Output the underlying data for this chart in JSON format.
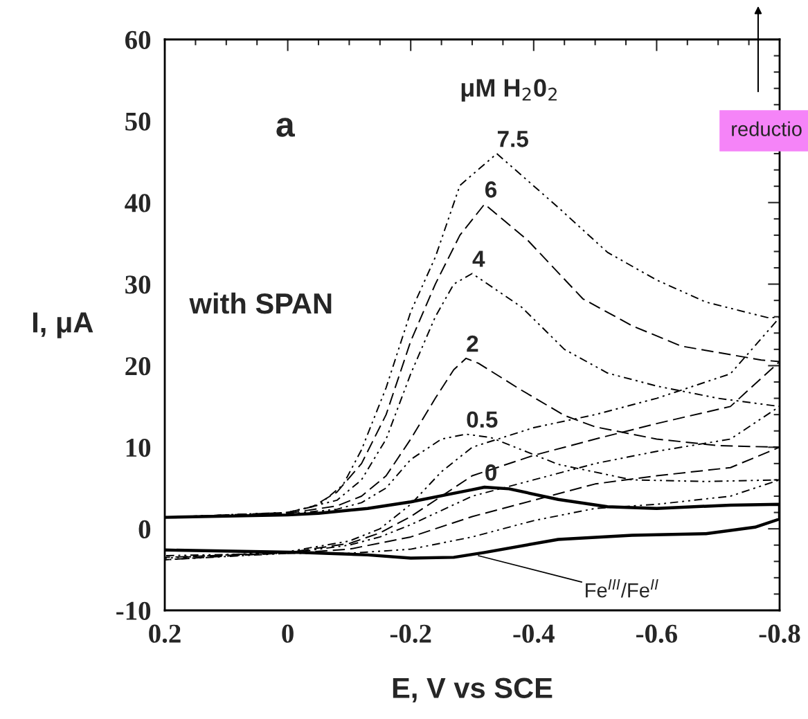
{
  "chart_data": {
    "type": "line",
    "xlabel": "E, V vs SCE",
    "ylabel": "I, μA",
    "xlim": [
      0.2,
      -0.8
    ],
    "xticks": [
      0.2,
      0,
      -0.2,
      -0.4,
      -0.6,
      -0.8
    ],
    "ylim": [
      -10,
      60
    ],
    "yticks": [
      -10,
      0,
      10,
      20,
      30,
      40,
      50,
      60
    ],
    "grid": false,
    "legend": false,
    "marker": "none",
    "series": [
      {
        "name": "0",
        "color": "#000000",
        "line_style": "solid",
        "x": [
          0.2,
          0,
          -0.05,
          -0.13,
          -0.2,
          -0.26,
          -0.3,
          -0.32,
          -0.36,
          -0.44,
          -0.52,
          -0.6,
          -0.72,
          -0.8,
          -0.8,
          -0.76,
          -0.68,
          -0.56,
          -0.44,
          -0.32,
          -0.27,
          -0.2,
          -0.13,
          -0.02,
          0.2
        ],
        "values": [
          1.4,
          1.7,
          1.9,
          2.5,
          3.3,
          4.2,
          4.8,
          5.1,
          4.9,
          3.6,
          2.7,
          2.5,
          2.9,
          3.0,
          1.2,
          0.2,
          -0.6,
          -0.8,
          -1.3,
          -2.9,
          -3.5,
          -3.6,
          -3.2,
          -2.9,
          -2.6
        ]
      },
      {
        "name": "0.5",
        "color": "#000000",
        "line_style": "dotted",
        "x": [
          0.2,
          0,
          -0.08,
          -0.12,
          -0.16,
          -0.2,
          -0.25,
          -0.29,
          -0.33,
          -0.37,
          -0.44,
          -0.56,
          -0.68,
          -0.8,
          -0.8,
          -0.72,
          -0.6,
          -0.5,
          -0.4,
          -0.3,
          -0.2,
          -0.1,
          0,
          0.2
        ],
        "values": [
          1.4,
          1.8,
          2.4,
          3.2,
          5.0,
          8.5,
          11,
          11.6,
          11.2,
          10,
          7.9,
          6.0,
          5.8,
          6.0,
          6.0,
          4.0,
          3.0,
          2.5,
          1.0,
          -1.0,
          -2.5,
          -3.0,
          -3.0,
          -3.3
        ]
      },
      {
        "name": "2",
        "color": "#000000",
        "line_style": "dashed",
        "x": [
          0.2,
          0,
          -0.08,
          -0.12,
          -0.16,
          -0.2,
          -0.24,
          -0.27,
          -0.29,
          -0.31,
          -0.38,
          -0.45,
          -0.5,
          -0.6,
          -0.7,
          -0.8,
          -0.8,
          -0.72,
          -0.6,
          -0.5,
          -0.4,
          -0.3,
          -0.2,
          -0.1,
          0,
          0.2
        ],
        "values": [
          1.4,
          1.9,
          2.8,
          4.0,
          6.5,
          11,
          16,
          19.5,
          20.9,
          20.3,
          17.0,
          13.9,
          12.5,
          11,
          10.2,
          10,
          10,
          7.5,
          6.5,
          5.5,
          3.5,
          1.5,
          -1.0,
          -2.5,
          -3.0,
          -3.5
        ]
      },
      {
        "name": "4",
        "color": "#000000",
        "line_style": "dotted",
        "x": [
          0.2,
          0,
          -0.08,
          -0.12,
          -0.16,
          -0.2,
          -0.24,
          -0.27,
          -0.3,
          -0.38,
          -0.45,
          -0.52,
          -0.6,
          -0.7,
          -0.8,
          -0.8,
          -0.72,
          -0.6,
          -0.5,
          -0.4,
          -0.3,
          -0.2,
          -0.15,
          -0.1,
          0,
          0.2
        ],
        "values": [
          1.4,
          2.0,
          3.5,
          6.0,
          11,
          19,
          26,
          30,
          31.3,
          27.2,
          22,
          19.1,
          17.5,
          16,
          15,
          15,
          11,
          9.5,
          8,
          6,
          4,
          0.5,
          -1.0,
          -2.0,
          -3.0,
          -3.8
        ]
      },
      {
        "name": "6",
        "color": "#000000",
        "line_style": "dashed",
        "x": [
          0.2,
          0,
          -0.04,
          -0.08,
          -0.12,
          -0.16,
          -0.2,
          -0.24,
          -0.28,
          -0.32,
          -0.39,
          -0.48,
          -0.56,
          -0.64,
          -0.77,
          -0.8,
          -0.8,
          -0.72,
          -0.6,
          -0.5,
          -0.4,
          -0.3,
          -0.25,
          -0.2,
          -0.15,
          -0.1,
          0,
          0.2
        ],
        "values": [
          1.4,
          2.0,
          2.7,
          4.5,
          8,
          14,
          23,
          30,
          36,
          39.8,
          35.4,
          28.2,
          24.9,
          22.4,
          20.7,
          20.5,
          20.5,
          15,
          12.9,
          11,
          9,
          6.5,
          4,
          1.5,
          -0.5,
          -1.8,
          -2.9,
          -3.8
        ]
      },
      {
        "name": "7.5",
        "color": "#000000",
        "line_style": "dotted",
        "x": [
          0.2,
          0,
          -0.05,
          -0.09,
          -0.12,
          -0.16,
          -0.2,
          -0.24,
          -0.28,
          -0.34,
          -0.44,
          -0.52,
          -0.6,
          -0.68,
          -0.78,
          -0.8,
          -0.8,
          -0.72,
          -0.6,
          -0.5,
          -0.4,
          -0.3,
          -0.25,
          -0.2,
          -0.15,
          -0.1,
          0,
          0.2
        ],
        "values": [
          1.4,
          2.0,
          2.9,
          5.4,
          9.7,
          17.3,
          26.6,
          33.3,
          42.1,
          46.0,
          39.4,
          33.9,
          30.5,
          27.8,
          25.9,
          25.9,
          25.9,
          19,
          16,
          14,
          12.4,
          10,
          7,
          3,
          0,
          -1.5,
          -2.8,
          -3.6
        ]
      }
    ],
    "annotations": [
      "a",
      "with SPAN",
      "μM H$_{2}$0$_{2}$",
      "reductio",
      {
        "text": "Fe$^{III}$/Fe$^{II}$",
        "x": -0.31,
        "y": -3.3
      }
    ]
  }
}
